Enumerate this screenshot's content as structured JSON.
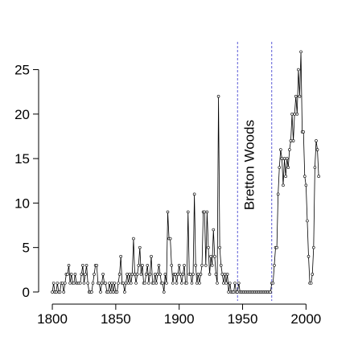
{
  "chart_data": {
    "type": "line",
    "annotation": "Bretton Woods",
    "reference_lines": [
      1946,
      1973
    ],
    "reference_color": "#3333cc",
    "color": "#000000",
    "x": [
      1800,
      1801,
      1802,
      1803,
      1804,
      1805,
      1806,
      1807,
      1808,
      1809,
      1810,
      1811,
      1812,
      1813,
      1814,
      1815,
      1816,
      1817,
      1818,
      1819,
      1820,
      1821,
      1822,
      1823,
      1824,
      1825,
      1826,
      1827,
      1828,
      1829,
      1830,
      1831,
      1832,
      1833,
      1834,
      1835,
      1836,
      1837,
      1838,
      1839,
      1840,
      1841,
      1842,
      1843,
      1844,
      1845,
      1846,
      1847,
      1848,
      1849,
      1850,
      1851,
      1852,
      1853,
      1854,
      1855,
      1856,
      1857,
      1858,
      1859,
      1860,
      1861,
      1862,
      1863,
      1864,
      1865,
      1866,
      1867,
      1868,
      1869,
      1870,
      1871,
      1872,
      1873,
      1874,
      1875,
      1876,
      1877,
      1878,
      1879,
      1880,
      1881,
      1882,
      1883,
      1884,
      1885,
      1886,
      1887,
      1888,
      1889,
      1890,
      1891,
      1892,
      1893,
      1894,
      1895,
      1896,
      1897,
      1898,
      1899,
      1900,
      1901,
      1902,
      1903,
      1904,
      1905,
      1906,
      1907,
      1908,
      1909,
      1910,
      1911,
      1912,
      1913,
      1914,
      1915,
      1916,
      1917,
      1918,
      1919,
      1920,
      1921,
      1922,
      1923,
      1924,
      1925,
      1926,
      1927,
      1928,
      1929,
      1930,
      1931,
      1932,
      1933,
      1934,
      1935,
      1936,
      1937,
      1938,
      1939,
      1940,
      1941,
      1942,
      1943,
      1944,
      1945,
      1946,
      1947,
      1948,
      1949,
      1950,
      1951,
      1952,
      1953,
      1954,
      1955,
      1956,
      1957,
      1958,
      1959,
      1960,
      1961,
      1962,
      1963,
      1964,
      1965,
      1966,
      1967,
      1968,
      1969,
      1970,
      1971,
      1972,
      1973,
      1974,
      1975,
      1976,
      1977,
      1978,
      1979,
      1980,
      1981,
      1982,
      1983,
      1984,
      1985,
      1986,
      1987,
      1988,
      1989,
      1990,
      1991,
      1992,
      1993,
      1994,
      1995,
      1996,
      1997,
      1998,
      1999,
      2000,
      2001,
      2002,
      2003,
      2004,
      2005,
      2006,
      2007,
      2008,
      2009,
      2010
    ],
    "values": [
      0,
      1,
      0,
      0,
      1,
      0,
      0,
      1,
      1,
      0,
      1,
      2,
      2,
      3,
      1,
      2,
      1,
      1,
      2,
      1,
      1,
      1,
      1,
      2,
      3,
      1,
      2,
      3,
      1,
      0,
      0,
      0,
      1,
      2,
      3,
      3,
      1,
      1,
      0,
      1,
      2,
      1,
      1,
      0,
      0,
      1,
      0,
      1,
      0,
      1,
      0,
      0,
      1,
      2,
      4,
      1,
      1,
      0,
      1,
      2,
      1,
      2,
      1,
      2,
      6,
      2,
      1,
      2,
      3,
      5,
      2,
      3,
      1,
      1,
      2,
      3,
      1,
      2,
      4,
      1,
      1,
      2,
      1,
      2,
      3,
      2,
      1,
      1,
      0,
      2,
      1,
      9,
      6,
      6,
      3,
      1,
      2,
      2,
      1,
      2,
      3,
      2,
      1,
      2,
      3,
      1,
      1,
      9,
      2,
      2,
      1,
      2,
      11,
      3,
      1,
      2,
      1,
      2,
      3,
      9,
      9,
      3,
      9,
      5,
      2,
      4,
      3,
      7,
      4,
      2,
      1,
      22,
      5,
      3,
      2,
      1,
      2,
      1,
      2,
      0,
      1,
      0,
      0,
      0,
      1,
      0,
      0,
      1,
      0,
      0,
      0,
      0,
      0,
      0,
      0,
      0,
      0,
      0,
      0,
      0,
      0,
      0,
      0,
      0,
      0,
      0,
      0,
      0,
      0,
      0,
      0,
      0,
      0,
      1,
      1,
      3,
      5,
      5,
      11,
      14,
      16,
      15,
      12,
      15,
      13,
      15,
      14,
      16,
      17,
      20,
      17,
      20,
      22,
      20,
      25,
      22,
      27,
      18,
      18,
      13,
      12,
      8,
      4,
      1,
      1,
      2,
      5,
      14,
      17,
      16,
      13
    ],
    "xlim": [
      1793,
      2015
    ],
    "ylim": [
      -1,
      27.4
    ],
    "xticks": [
      1800,
      1850,
      1900,
      1950,
      2000
    ],
    "yticks": [
      0,
      5,
      10,
      15,
      20,
      25
    ]
  }
}
